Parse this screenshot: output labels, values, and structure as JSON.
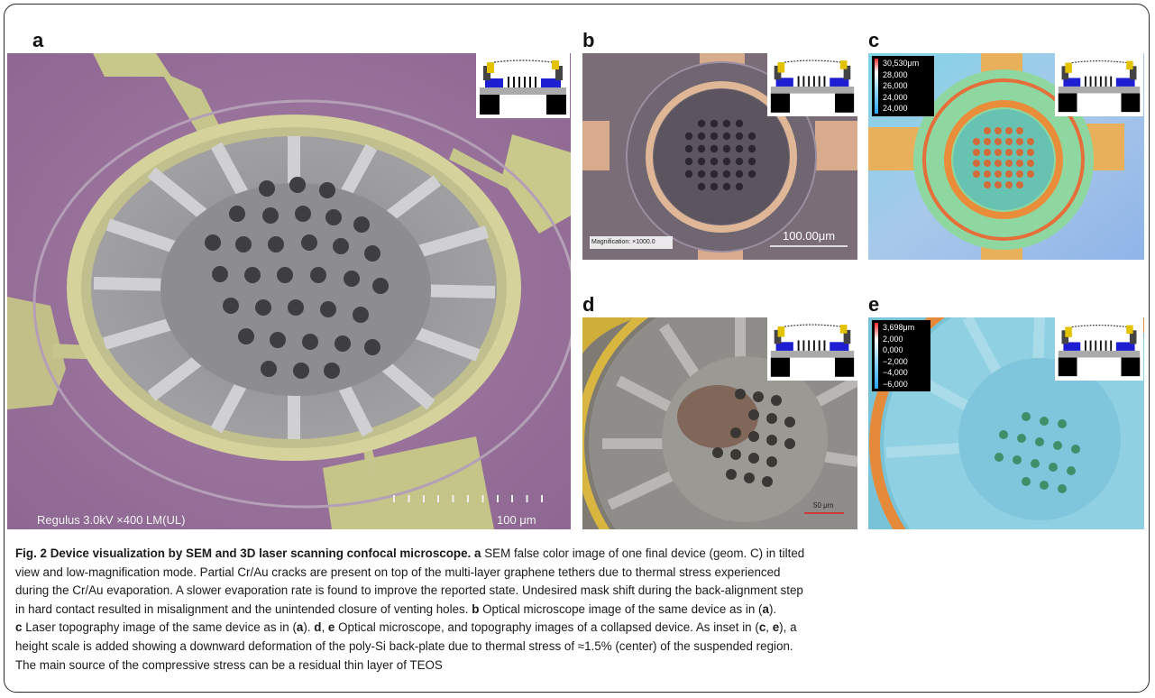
{
  "panels": {
    "a": {
      "label": "a",
      "microscope_info": "Regulus 3.0kV ×400 LM(UL)",
      "scale": "100 μm"
    },
    "b": {
      "label": "b",
      "magnification": "Magnification: ×1000.0",
      "scale": "100.00μm"
    },
    "c": {
      "label": "c",
      "legend": [
        "30,530μm",
        "28,000",
        "26,000",
        "24,000",
        "24,000"
      ]
    },
    "d": {
      "label": "d",
      "scale": "50 μm"
    },
    "e": {
      "label": "e",
      "legend": [
        "3,698μm",
        "2,000",
        "0,000",
        "−2,000",
        "−4,000",
        "−6,000"
      ]
    }
  },
  "caption": {
    "title": "Fig. 2 Device visualization by SEM and 3D laser scanning confocal microscope.",
    "lines": [
      "SEM false color image of one final device (geom. C) in tilted",
      "view and low-magnification mode. Partial Cr/Au cracks are present on top of the multi-layer graphene tethers due to thermal stress experienced",
      "during the Cr/Au evaporation. A slower evaporation rate is found to improve the reported state. Undesired mask shift during the back-alignment step",
      "in hard contact resulted in misalignment and the unintended closure of venting holes.",
      "Optical microscope image of the same device as in (",
      ").",
      "Laser topography image of the same device as in (",
      ").",
      "Optical microscope, and topography images of a collapsed device. As inset in (",
      "), a",
      "height scale is added showing a downward deformation of the poly-Si back-plate due to thermal stress of ≈1.5% (center) of the suspended region.",
      "The main source of the compressive stress can be a residual thin layer of TEOS"
    ],
    "refs": {
      "a": "a",
      "b": "b",
      "c": "c",
      "d": "d",
      "e": "e",
      "ce_sep": ", "
    }
  }
}
